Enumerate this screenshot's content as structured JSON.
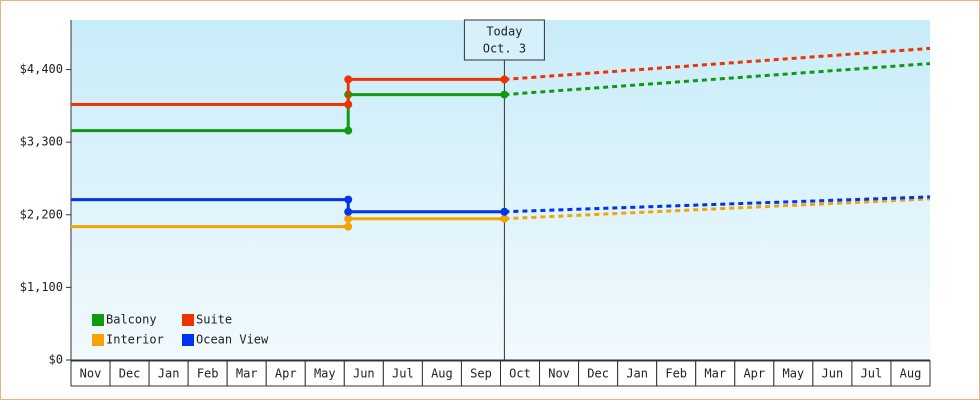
{
  "chart_data": {
    "type": "line",
    "categories": [
      "Nov",
      "Dec",
      "Jan",
      "Feb",
      "Mar",
      "Apr",
      "May",
      "Jun",
      "Jul",
      "Aug",
      "Sep",
      "Oct",
      "Nov",
      "Dec",
      "Jan",
      "Feb",
      "Mar",
      "Apr",
      "May",
      "Jun",
      "Jul",
      "Aug"
    ],
    "xlim": [
      0,
      22
    ],
    "ylim": [
      0,
      5150
    ],
    "yticks": [
      {
        "value": 0,
        "label": "$0"
      },
      {
        "value": 1100,
        "label": "$1,100"
      },
      {
        "value": 2200,
        "label": "$2,200"
      },
      {
        "value": 3300,
        "label": "$3,300"
      },
      {
        "value": 4400,
        "label": "$4,400"
      }
    ],
    "annotation": {
      "x": 11.1,
      "lines": [
        "Today",
        "Oct. 3"
      ]
    },
    "legend": "lower left",
    "series": [
      {
        "name": "Balcony",
        "color": "#119911",
        "x": [
          0,
          7.1,
          7.1,
          11.1,
          22
        ],
        "values": [
          3475,
          3475,
          4020,
          4020,
          4490
        ]
      },
      {
        "name": "Suite",
        "color": "#ee3300",
        "x": [
          0,
          7.1,
          7.1,
          11.1,
          22
        ],
        "values": [
          3870,
          3870,
          4250,
          4250,
          4720
        ]
      },
      {
        "name": "Interior",
        "color": "#f5a300",
        "x": [
          0,
          7.1,
          7.1,
          11.1,
          22
        ],
        "values": [
          2020,
          2020,
          2140,
          2140,
          2440
        ]
      },
      {
        "name": "Ocean View",
        "color": "#0033ee",
        "x": [
          0,
          7.1,
          7.1,
          11.1,
          22
        ],
        "values": [
          2430,
          2430,
          2245,
          2245,
          2470
        ]
      }
    ]
  }
}
